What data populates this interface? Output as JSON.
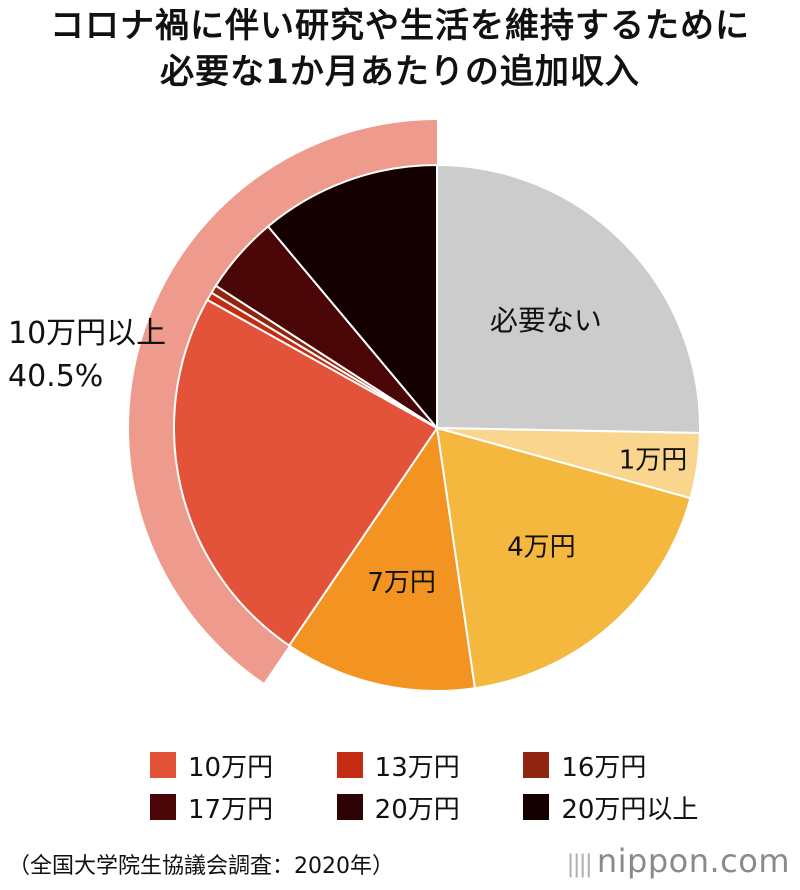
{
  "title_lines": [
    "コロナ禍に伴い研究や生活を維持するために",
    "必要な1か月あたりの追加収入"
  ],
  "chart_data": {
    "type": "pie",
    "title": "コロナ禍に伴い研究や生活を維持するために必要な1か月あたりの追加収入",
    "slices": [
      {
        "label": "必要ない",
        "value": 25.3,
        "color": "#cccccc",
        "show_label": true
      },
      {
        "label": "1万円",
        "value": 4.0,
        "color": "#f9d58e",
        "show_label": true
      },
      {
        "label": "4万円",
        "value": 18.4,
        "color": "#f4b83e",
        "show_label": true
      },
      {
        "label": "7万円",
        "value": 11.8,
        "color": "#f39322",
        "show_label": true
      },
      {
        "label": "10万円",
        "value": 23.6,
        "color": "#e3533a",
        "show_label": false
      },
      {
        "label": "13万円",
        "value": 0.5,
        "color": "#c42c12",
        "show_label": false
      },
      {
        "label": "16万円",
        "value": 0.5,
        "color": "#8f2410",
        "show_label": false
      },
      {
        "label": "17万円",
        "value": 4.8,
        "color": "#4a0606",
        "show_label": false
      },
      {
        "label": "20万円以上",
        "value": 11.1,
        "color": "#150000",
        "show_label": false
      }
    ],
    "group": {
      "label": "10万円以上",
      "percent_text": "40.5%",
      "color": "#ee9a8c"
    },
    "legend": [
      {
        "label": "10万円",
        "color": "#e3533a"
      },
      {
        "label": "13万円",
        "color": "#c42c12"
      },
      {
        "label": "16万円",
        "color": "#8f2410"
      },
      {
        "label": "17万円",
        "color": "#4a0606"
      },
      {
        "label": "20万円",
        "color": "#2e0303"
      },
      {
        "label": "20万円以上",
        "color": "#150000"
      }
    ]
  },
  "source": "（全国大学院生協議会調査：2020年）",
  "brand": {
    "bars": "||||",
    "text": "nippon.com"
  }
}
